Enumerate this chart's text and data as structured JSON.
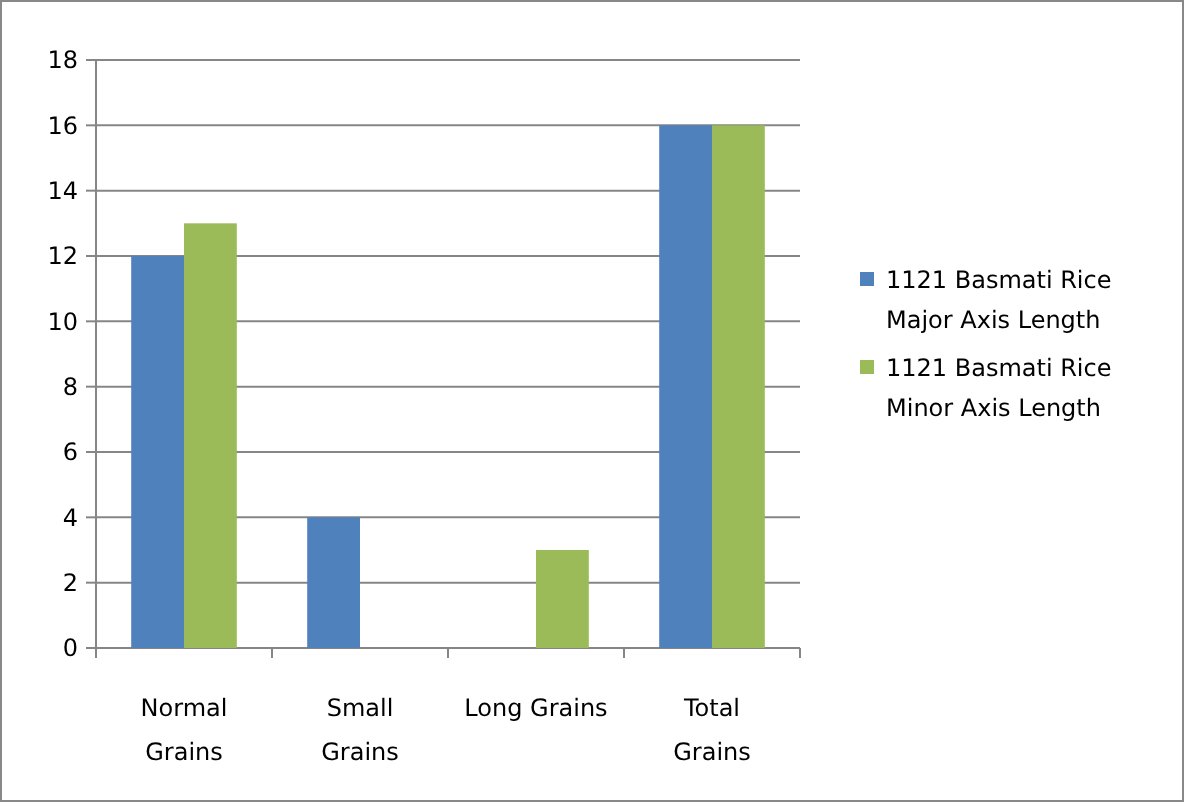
{
  "chart_data": {
    "type": "bar",
    "categories": [
      "Normal Grains",
      "Small Grains",
      "Long Grains",
      "Total Grains"
    ],
    "series": [
      {
        "name": "1121 Basmati Rice Major Axis Length",
        "color": "#4f81bd",
        "values": [
          12,
          4,
          0,
          16
        ]
      },
      {
        "name": "1121 Basmati Rice Minor Axis Length",
        "color": "#9bbb59",
        "values": [
          13,
          0,
          3,
          16
        ]
      }
    ],
    "ylim": [
      0,
      18
    ],
    "yticks": [
      0,
      2,
      4,
      6,
      8,
      10,
      12,
      14,
      16,
      18
    ],
    "grid": "y",
    "legend": "right"
  }
}
